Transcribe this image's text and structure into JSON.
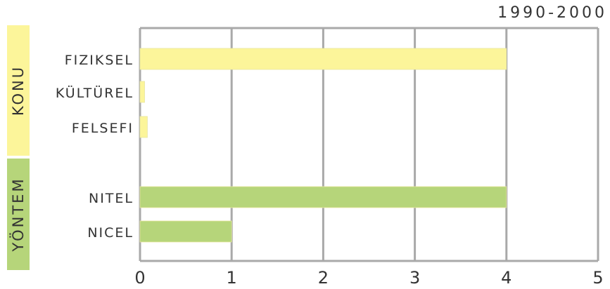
{
  "chart_data": {
    "type": "bar",
    "orientation": "horizontal",
    "title": "1990-2000",
    "xlim": [
      0,
      5
    ],
    "xticks": [
      "0",
      "1",
      "2",
      "3",
      "4",
      "5"
    ],
    "grid": true,
    "groups": [
      {
        "label": "KONU",
        "color": "#fcf59a",
        "categories": [
          "FIZIKSEL",
          "KÜLTÜREL",
          "FELSEFI"
        ],
        "values": [
          4,
          0.05,
          0.08
        ]
      },
      {
        "label": "YÖNTEM",
        "color": "#b6d57a",
        "categories": [
          "NITEL",
          "NICEL"
        ],
        "values": [
          4,
          1
        ]
      }
    ]
  }
}
